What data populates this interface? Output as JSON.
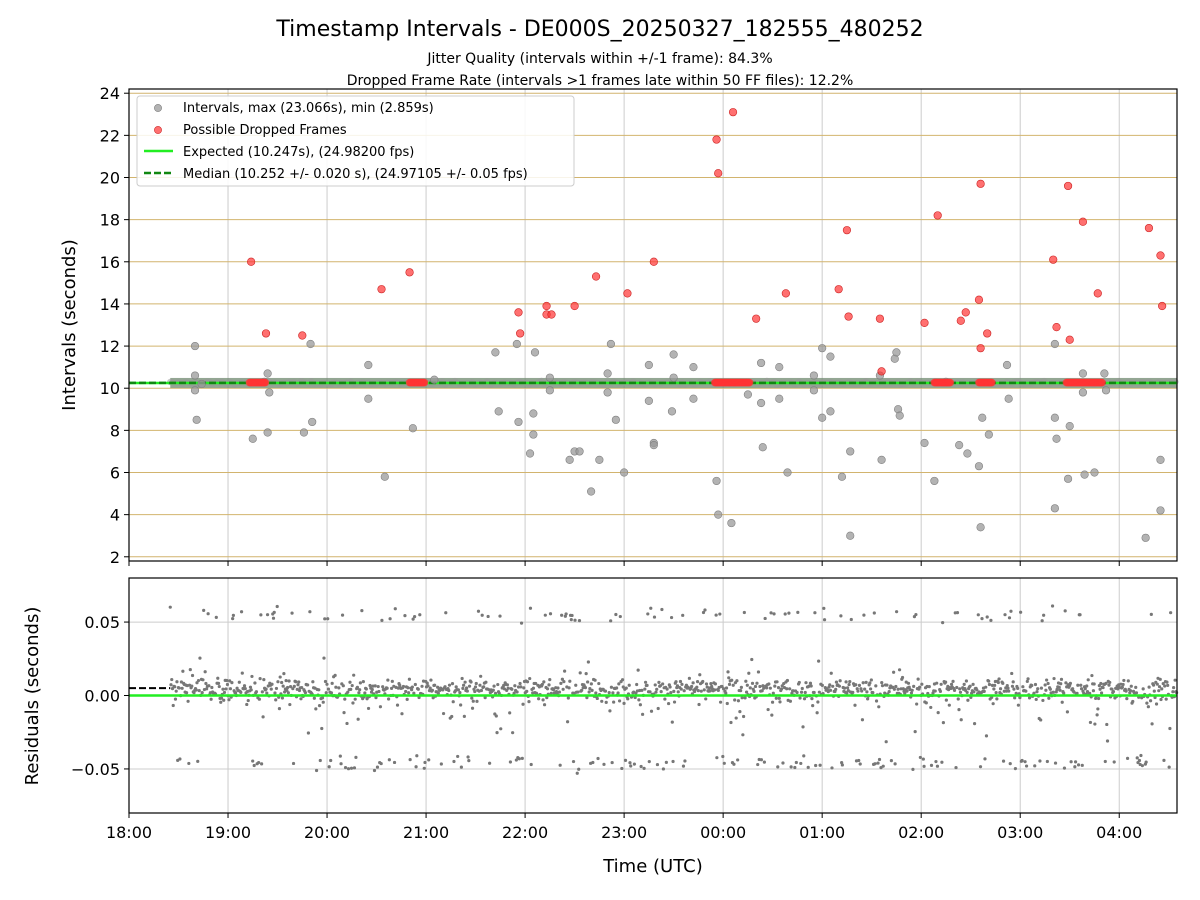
{
  "title": "Timestamp Intervals - DE000S_20250327_182555_480252",
  "subtitle_1": "Jitter Quality (intervals within +/-1 frame): 84.3%",
  "subtitle_2": "Dropped Frame Rate (intervals >1 frames late within 50 FF files): 12.2%",
  "colors": {
    "interval": "#999999",
    "dropped": "#ff3333",
    "expected": "#22ee22",
    "median": "#118811",
    "residual": "#777777",
    "grid_x": "#cccccc",
    "grid_y_top": "#d2b46e",
    "grid_y_bottom": "#cccccc"
  },
  "chart_data": [
    {
      "type": "scatter",
      "ylabel": "Intervals (seconds)",
      "xlabel": "",
      "xlim": [
        "18:00",
        "04:35"
      ],
      "ylim": [
        1.8,
        24.2
      ],
      "yticks": [
        2,
        4,
        6,
        8,
        10,
        12,
        14,
        16,
        18,
        20,
        22,
        24
      ],
      "grid": true,
      "legend_position": "upper-left",
      "legend": [
        "Intervals, max (23.066s), min (2.859s)",
        "Possible Dropped Frames",
        "Expected (10.247s), (24.98200 fps)",
        "Median (10.252 +/- 0.020 s), (24.97105 +/- 0.05 fps)"
      ],
      "expected": 10.247,
      "median": 10.252,
      "intervals_band": {
        "from": "18:25",
        "to": "04:35",
        "value": 10.25
      },
      "intervals_outliers": [
        [
          "18:40",
          12.0
        ],
        [
          "18:40",
          10.6
        ],
        [
          "18:40",
          9.9
        ],
        [
          "18:41",
          8.5
        ],
        [
          "18:44",
          10.2
        ],
        [
          "19:15",
          7.6
        ],
        [
          "19:22",
          10.3
        ],
        [
          "19:24",
          10.7
        ],
        [
          "19:25",
          9.8
        ],
        [
          "19:24",
          7.9
        ],
        [
          "19:46",
          7.9
        ],
        [
          "19:50",
          12.1
        ],
        [
          "19:51",
          8.4
        ],
        [
          "20:25",
          11.1
        ],
        [
          "20:25",
          9.5
        ],
        [
          "20:35",
          5.8
        ],
        [
          "20:52",
          8.1
        ],
        [
          "21:05",
          10.4
        ],
        [
          "21:42",
          11.7
        ],
        [
          "21:44",
          8.9
        ],
        [
          "21:55",
          12.1
        ],
        [
          "21:56",
          8.4
        ],
        [
          "22:06",
          11.7
        ],
        [
          "22:05",
          8.8
        ],
        [
          "22:05",
          7.8
        ],
        [
          "22:03",
          6.9
        ],
        [
          "22:15",
          10.5
        ],
        [
          "22:15",
          9.9
        ],
        [
          "22:27",
          6.6
        ],
        [
          "22:30",
          7.0
        ],
        [
          "22:33",
          7.0
        ],
        [
          "22:45",
          6.6
        ],
        [
          "22:50",
          10.7
        ],
        [
          "22:50",
          9.8
        ],
        [
          "22:40",
          5.1
        ],
        [
          "22:52",
          12.1
        ],
        [
          "22:55",
          8.5
        ],
        [
          "23:00",
          6.0
        ],
        [
          "23:15",
          11.1
        ],
        [
          "23:15",
          9.4
        ],
        [
          "23:18",
          7.4
        ],
        [
          "23:18",
          7.3
        ],
        [
          "23:30",
          11.6
        ],
        [
          "23:30",
          10.5
        ],
        [
          "23:29",
          8.9
        ],
        [
          "23:42",
          11.0
        ],
        [
          "23:42",
          9.5
        ],
        [
          "23:56",
          5.6
        ],
        [
          "23:57",
          4.0
        ],
        [
          "00:05",
          3.6
        ],
        [
          "00:15",
          9.7
        ],
        [
          "00:23",
          11.2
        ],
        [
          "00:23",
          9.3
        ],
        [
          "00:24",
          7.2
        ],
        [
          "00:34",
          11.0
        ],
        [
          "00:34",
          9.5
        ],
        [
          "00:39",
          6.0
        ],
        [
          "00:55",
          10.6
        ],
        [
          "00:55",
          9.9
        ],
        [
          "01:00",
          11.9
        ],
        [
          "01:00",
          8.6
        ],
        [
          "01:05",
          11.5
        ],
        [
          "01:05",
          8.9
        ],
        [
          "01:12",
          5.8
        ],
        [
          "01:17",
          7.0
        ],
        [
          "01:17",
          3.0
        ],
        [
          "01:35",
          10.6
        ],
        [
          "01:36",
          6.6
        ],
        [
          "01:44",
          11.4
        ],
        [
          "01:45",
          11.7
        ],
        [
          "01:46",
          9.0
        ],
        [
          "01:47",
          8.7
        ],
        [
          "02:02",
          7.4
        ],
        [
          "02:08",
          5.6
        ],
        [
          "02:15",
          10.3
        ],
        [
          "02:23",
          7.3
        ],
        [
          "02:28",
          6.9
        ],
        [
          "02:35",
          6.3
        ],
        [
          "02:36",
          3.4
        ],
        [
          "02:37",
          8.6
        ],
        [
          "02:41",
          7.8
        ],
        [
          "02:52",
          11.1
        ],
        [
          "02:53",
          9.5
        ],
        [
          "03:21",
          12.1
        ],
        [
          "03:21",
          8.6
        ],
        [
          "03:22",
          7.6
        ],
        [
          "03:21",
          4.3
        ],
        [
          "03:29",
          5.7
        ],
        [
          "03:30",
          8.2
        ],
        [
          "03:38",
          10.7
        ],
        [
          "03:38",
          9.8
        ],
        [
          "03:39",
          5.9
        ],
        [
          "03:45",
          6.0
        ],
        [
          "03:51",
          10.7
        ],
        [
          "03:52",
          9.9
        ],
        [
          "04:16",
          2.9
        ],
        [
          "04:25",
          6.6
        ],
        [
          "04:25",
          4.2
        ]
      ],
      "dropped_frames": [
        [
          "19:14",
          16.0
        ],
        [
          "19:23",
          12.6
        ],
        [
          "19:45",
          12.5
        ],
        [
          "20:33",
          14.7
        ],
        [
          "20:50",
          15.5
        ],
        [
          "21:56",
          13.6
        ],
        [
          "21:57",
          12.6
        ],
        [
          "22:13",
          13.9
        ],
        [
          "22:13",
          13.5
        ],
        [
          "22:16",
          13.5
        ],
        [
          "22:30",
          13.9
        ],
        [
          "22:43",
          15.3
        ],
        [
          "23:02",
          14.5
        ],
        [
          "23:18",
          16.0
        ],
        [
          "23:56",
          21.8
        ],
        [
          "23:57",
          20.2
        ],
        [
          "00:06",
          23.1
        ],
        [
          "00:20",
          13.3
        ],
        [
          "00:38",
          14.5
        ],
        [
          "01:10",
          14.7
        ],
        [
          "01:15",
          17.5
        ],
        [
          "01:16",
          13.4
        ],
        [
          "01:35",
          13.3
        ],
        [
          "01:36",
          10.8
        ],
        [
          "02:02",
          13.1
        ],
        [
          "02:10",
          18.2
        ],
        [
          "02:24",
          13.2
        ],
        [
          "02:27",
          13.6
        ],
        [
          "02:35",
          14.2
        ],
        [
          "02:36",
          11.9
        ],
        [
          "02:36",
          19.7
        ],
        [
          "02:40",
          12.6
        ],
        [
          "03:20",
          16.1
        ],
        [
          "03:22",
          12.9
        ],
        [
          "03:30",
          12.3
        ],
        [
          "03:29",
          19.6
        ],
        [
          "03:38",
          17.9
        ],
        [
          "03:47",
          14.5
        ],
        [
          "04:18",
          17.6
        ],
        [
          "04:25",
          16.3
        ],
        [
          "04:26",
          13.9
        ]
      ],
      "dropped_clusters": [
        {
          "from": "19:13",
          "to": "19:23",
          "value": 10.27
        },
        {
          "from": "20:50",
          "to": "20:59",
          "value": 10.27
        },
        {
          "from": "23:55",
          "to": "00:16",
          "value": 10.27
        },
        {
          "from": "02:08",
          "to": "02:18",
          "value": 10.27
        },
        {
          "from": "02:35",
          "to": "02:43",
          "value": 10.27
        },
        {
          "from": "03:28",
          "to": "03:50",
          "value": 10.27
        }
      ]
    },
    {
      "type": "scatter",
      "ylabel": "Residuals (seconds)",
      "xlabel": "Time (UTC)",
      "xlim": [
        "18:00",
        "04:35"
      ],
      "ylim": [
        -0.08,
        0.08
      ],
      "yticks": [
        0.05,
        0.0,
        -0.05
      ],
      "ytick_labels": [
        "0.05",
        "0.00",
        "−0.05"
      ],
      "xticks": [
        "18:00",
        "19:00",
        "20:00",
        "21:00",
        "22:00",
        "23:00",
        "00:00",
        "01:00",
        "02:00",
        "03:00",
        "04:00"
      ],
      "grid": true,
      "expected": 0.0,
      "median": 0.005,
      "residual_start": "18:25",
      "residual_end": "04:35"
    }
  ]
}
